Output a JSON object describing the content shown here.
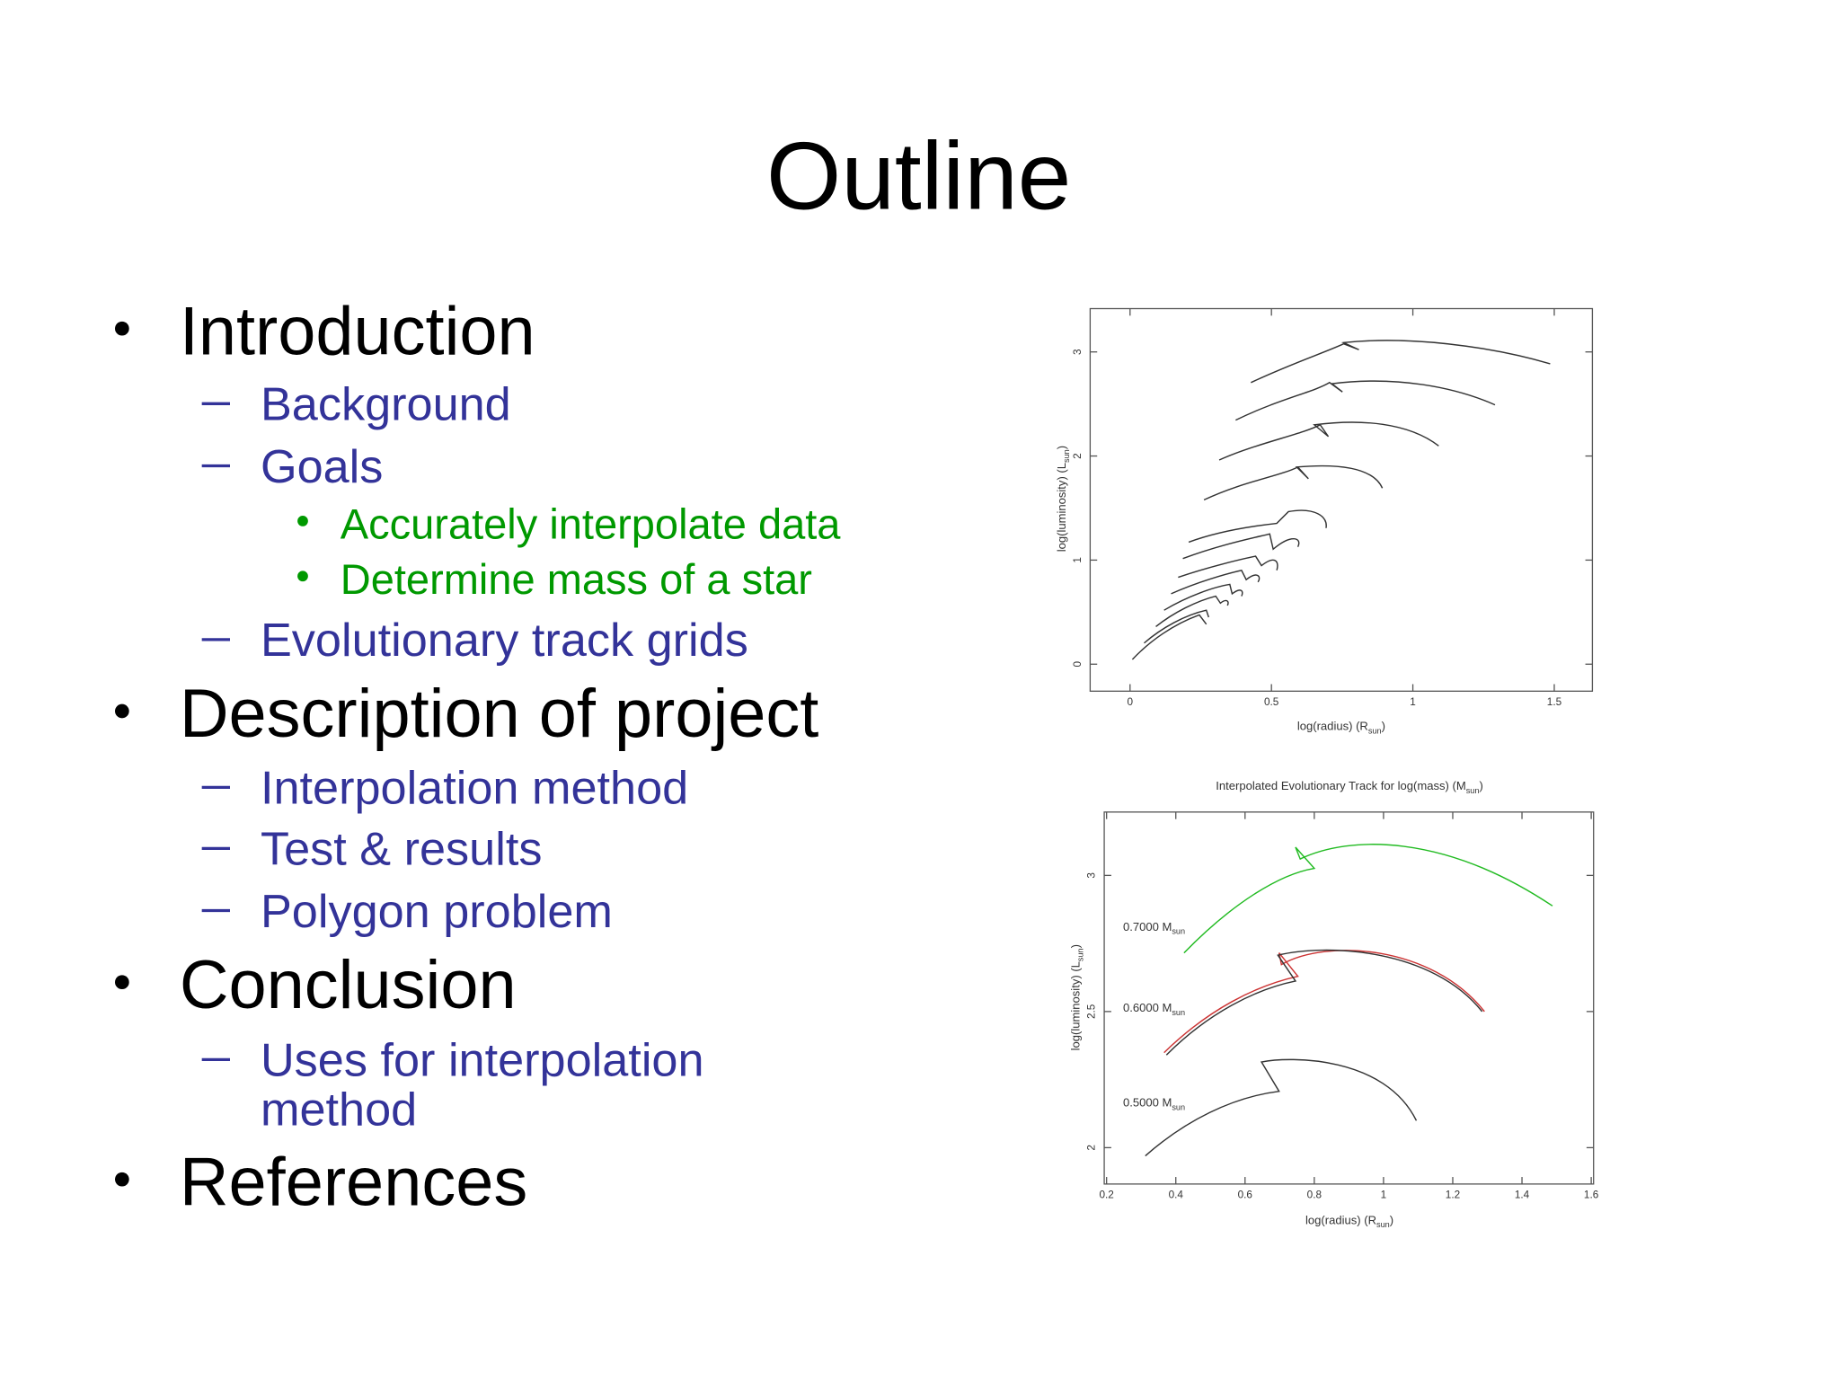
{
  "title": "Outline",
  "outline": [
    {
      "text": "Introduction",
      "items": [
        {
          "text": "Background"
        },
        {
          "text": "Goals",
          "items": [
            "Accurately interpolate data",
            "Determine mass of a star"
          ]
        },
        {
          "text": "Evolutionary track grids"
        }
      ]
    },
    {
      "text": "Description of project",
      "items": [
        {
          "text": "Interpolation method"
        },
        {
          "text": "Test & results"
        },
        {
          "text": "Polygon problem"
        }
      ]
    },
    {
      "text": "Conclusion",
      "items": [
        {
          "lines": [
            "Uses for interpolation",
            "method"
          ]
        }
      ]
    },
    {
      "text": "References"
    }
  ],
  "figures": [
    {
      "xticks": [
        0,
        0.5,
        1,
        1.5
      ],
      "yticks": [
        0,
        1,
        2,
        3
      ],
      "xlabel": {
        "main": "log(radius)  (R",
        "sub": "sun",
        "close": ")"
      },
      "ylabel": {
        "main": "log(luminosity)  (L",
        "sub": "sun",
        "close": ")"
      }
    },
    {
      "title": {
        "main": "Interpolated Evolutionary Track for log(mass)  (M",
        "sub": "sun",
        "close": ")"
      },
      "xticks": [
        0.2,
        0.4,
        0.6,
        0.8,
        1,
        1.2,
        1.4,
        1.6
      ],
      "yticks": [
        2,
        2.5,
        3
      ],
      "xlabel": {
        "main": "log(radius)  (R",
        "sub": "sun",
        "close": ")"
      },
      "ylabel": {
        "main": "log(luminosity)  (L",
        "sub": "sun",
        "close": ")"
      },
      "annotations": [
        {
          "main": "0.7000 M",
          "sub": "sun"
        },
        {
          "main": "0.6000 M",
          "sub": "sun"
        },
        {
          "main": "0.5000 M",
          "sub": "sun"
        }
      ]
    }
  ]
}
